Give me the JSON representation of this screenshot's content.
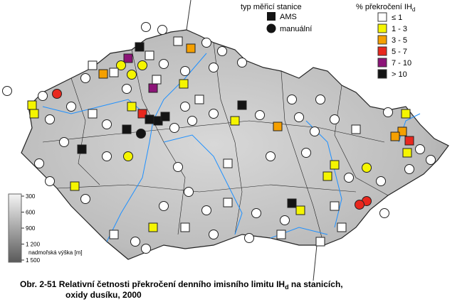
{
  "legend_type": {
    "title": "typ měřicí stanice",
    "items": [
      "AMS",
      "manuální"
    ]
  },
  "legend_class": {
    "title": "% překročení IH",
    "title_sub": "d",
    "items": [
      {
        "label": "≤ 1",
        "color": "#ffffff"
      },
      {
        "label": "1 - 3",
        "color": "#f5f500"
      },
      {
        "label": "3 - 5",
        "color": "#f5a000"
      },
      {
        "label": "5 - 7",
        "color": "#e8281e"
      },
      {
        "label": "7 - 10",
        "color": "#8c1478"
      },
      {
        "label": "> 10",
        "color": "#141414"
      }
    ]
  },
  "elevation": {
    "title": "nadmořská výška [m]",
    "labels": [
      "300",
      "600",
      "900",
      "1 200",
      "1 500"
    ]
  },
  "caption": {
    "line1": "Obr. 2-51  Relativní četnosti překročení denního imisního limitu IH",
    "line1_sub": "d",
    "line1_end": " na stanicích,",
    "line2": "oxidy dusíku, 2000"
  }
}
